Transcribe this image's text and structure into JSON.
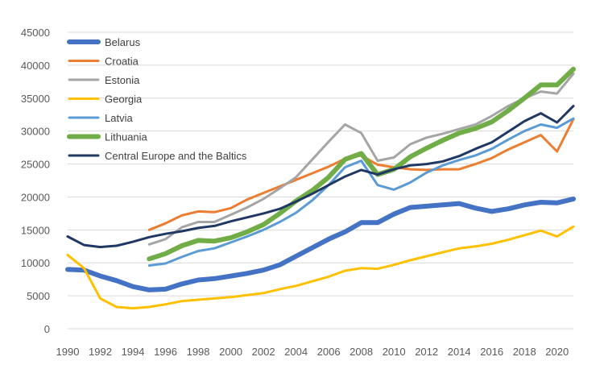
{
  "chart_data": {
    "type": "line",
    "title": "",
    "xlabel": "",
    "ylabel": "",
    "xlim": [
      1990,
      2021
    ],
    "ylim": [
      0,
      45000
    ],
    "y_ticks": [
      0,
      5000,
      10000,
      15000,
      20000,
      25000,
      30000,
      35000,
      40000,
      45000
    ],
    "y_tick_labels": [
      "0",
      "5000",
      "10000",
      "15000",
      "20000",
      "25000",
      "30000",
      "35000",
      "40000",
      "45000"
    ],
    "x_ticks": [
      1990,
      1992,
      1994,
      1996,
      1998,
      2000,
      2002,
      2004,
      2006,
      2008,
      2010,
      2012,
      2014,
      2016,
      2018,
      2020
    ],
    "x_tick_labels": [
      "1990",
      "1992",
      "1994",
      "1996",
      "1998",
      "2000",
      "2002",
      "2004",
      "2006",
      "2008",
      "2010",
      "2012",
      "2014",
      "2016",
      "2018",
      "2020"
    ],
    "grid": "horizontal",
    "legend_position": "top-left",
    "series": [
      {
        "name": "Belarus",
        "color": "#4472C4",
        "width": 6,
        "x": [
          1990,
          1991,
          1992,
          1993,
          1994,
          1995,
          1996,
          1997,
          1998,
          1999,
          2000,
          2001,
          2002,
          2003,
          2004,
          2005,
          2006,
          2007,
          2008,
          2009,
          2010,
          2011,
          2012,
          2013,
          2014,
          2015,
          2016,
          2017,
          2018,
          2019,
          2020,
          2021
        ],
        "y": [
          9000,
          8900,
          8000,
          7300,
          6400,
          5900,
          6000,
          6800,
          7400,
          7600,
          8000,
          8400,
          8900,
          9700,
          11000,
          12300,
          13600,
          14700,
          16100,
          16100,
          17400,
          18400,
          18600,
          18800,
          19000,
          18300,
          17800,
          18200,
          18800,
          19200,
          19100,
          19700
        ]
      },
      {
        "name": "Croatia",
        "color": "#ED7D31",
        "width": 3,
        "x": [
          1995,
          1996,
          1997,
          1998,
          1999,
          2000,
          2001,
          2002,
          2003,
          2004,
          2005,
          2006,
          2007,
          2008,
          2009,
          2010,
          2011,
          2012,
          2013,
          2014,
          2015,
          2016,
          2017,
          2018,
          2019,
          2020,
          2021
        ],
        "y": [
          15000,
          16000,
          17200,
          17800,
          17700,
          18300,
          19600,
          20600,
          21600,
          22600,
          23600,
          24600,
          25800,
          26300,
          24900,
          24500,
          24200,
          24100,
          24200,
          24200,
          25000,
          25900,
          27200,
          28300,
          29400,
          26900,
          31800
        ]
      },
      {
        "name": "Estonia",
        "color": "#A5A5A5",
        "width": 3,
        "x": [
          1995,
          1996,
          1997,
          1998,
          1999,
          2000,
          2001,
          2002,
          2003,
          2004,
          2005,
          2006,
          2007,
          2008,
          2009,
          2010,
          2011,
          2012,
          2013,
          2014,
          2015,
          2016,
          2017,
          2018,
          2019,
          2020,
          2021
        ],
        "y": [
          12800,
          13600,
          15400,
          16200,
          16200,
          17300,
          18400,
          19700,
          21300,
          23000,
          25700,
          28400,
          31000,
          29700,
          25500,
          26000,
          28000,
          29000,
          29600,
          30300,
          31000,
          32300,
          33800,
          35000,
          36000,
          35700,
          38700
        ]
      },
      {
        "name": "Georgia",
        "color": "#FFC000",
        "width": 3,
        "x": [
          1990,
          1991,
          1992,
          1993,
          1994,
          1995,
          1996,
          1997,
          1998,
          1999,
          2000,
          2001,
          2002,
          2003,
          2004,
          2005,
          2006,
          2007,
          2008,
          2009,
          2010,
          2011,
          2012,
          2013,
          2014,
          2015,
          2016,
          2017,
          2018,
          2019,
          2020,
          2021
        ],
        "y": [
          11200,
          9200,
          4600,
          3300,
          3100,
          3300,
          3700,
          4200,
          4400,
          4600,
          4800,
          5100,
          5400,
          6000,
          6500,
          7200,
          7900,
          8800,
          9200,
          9100,
          9700,
          10400,
          11000,
          11600,
          12200,
          12500,
          12900,
          13500,
          14200,
          14900,
          14000,
          15500
        ]
      },
      {
        "name": "Latvia",
        "color": "#5B9BD5",
        "width": 3,
        "x": [
          1995,
          1996,
          1997,
          1998,
          1999,
          2000,
          2001,
          2002,
          2003,
          2004,
          2005,
          2006,
          2007,
          2008,
          2009,
          2010,
          2011,
          2012,
          2013,
          2014,
          2015,
          2016,
          2017,
          2018,
          2019,
          2020,
          2021
        ],
        "y": [
          9600,
          9900,
          10900,
          11800,
          12200,
          13100,
          14000,
          15000,
          16200,
          17600,
          19500,
          21800,
          24500,
          25500,
          21800,
          21100,
          22200,
          23700,
          24800,
          25600,
          26300,
          27300,
          28700,
          30000,
          31000,
          30500,
          31900
        ]
      },
      {
        "name": "Lithuania",
        "color": "#70AD47",
        "width": 6,
        "x": [
          1995,
          1996,
          1997,
          1998,
          1999,
          2000,
          2001,
          2002,
          2003,
          2004,
          2005,
          2006,
          2007,
          2008,
          2009,
          2010,
          2011,
          2012,
          2013,
          2014,
          2015,
          2016,
          2017,
          2018,
          2019,
          2020,
          2021
        ],
        "y": [
          10600,
          11400,
          12600,
          13400,
          13300,
          13800,
          14700,
          15800,
          17500,
          19400,
          21000,
          23000,
          25700,
          26600,
          23400,
          24200,
          26100,
          27400,
          28600,
          29700,
          30400,
          31400,
          33100,
          35000,
          37000,
          37000,
          39400
        ]
      },
      {
        "name": "Central Europe and the Baltics",
        "color": "#203864",
        "width": 3,
        "x": [
          1990,
          1991,
          1992,
          1993,
          1994,
          1995,
          1996,
          1997,
          1998,
          1999,
          2000,
          2001,
          2002,
          2003,
          2004,
          2005,
          2006,
          2007,
          2008,
          2009,
          2010,
          2011,
          2012,
          2013,
          2014,
          2015,
          2016,
          2017,
          2018,
          2019,
          2020,
          2021
        ],
        "y": [
          14000,
          12700,
          12400,
          12600,
          13200,
          13900,
          14400,
          14800,
          15300,
          15600,
          16300,
          16900,
          17500,
          18200,
          19300,
          20500,
          21800,
          23100,
          24100,
          23400,
          24200,
          24800,
          25000,
          25400,
          26200,
          27300,
          28300,
          29900,
          31500,
          32700,
          31300,
          33800
        ]
      }
    ]
  }
}
